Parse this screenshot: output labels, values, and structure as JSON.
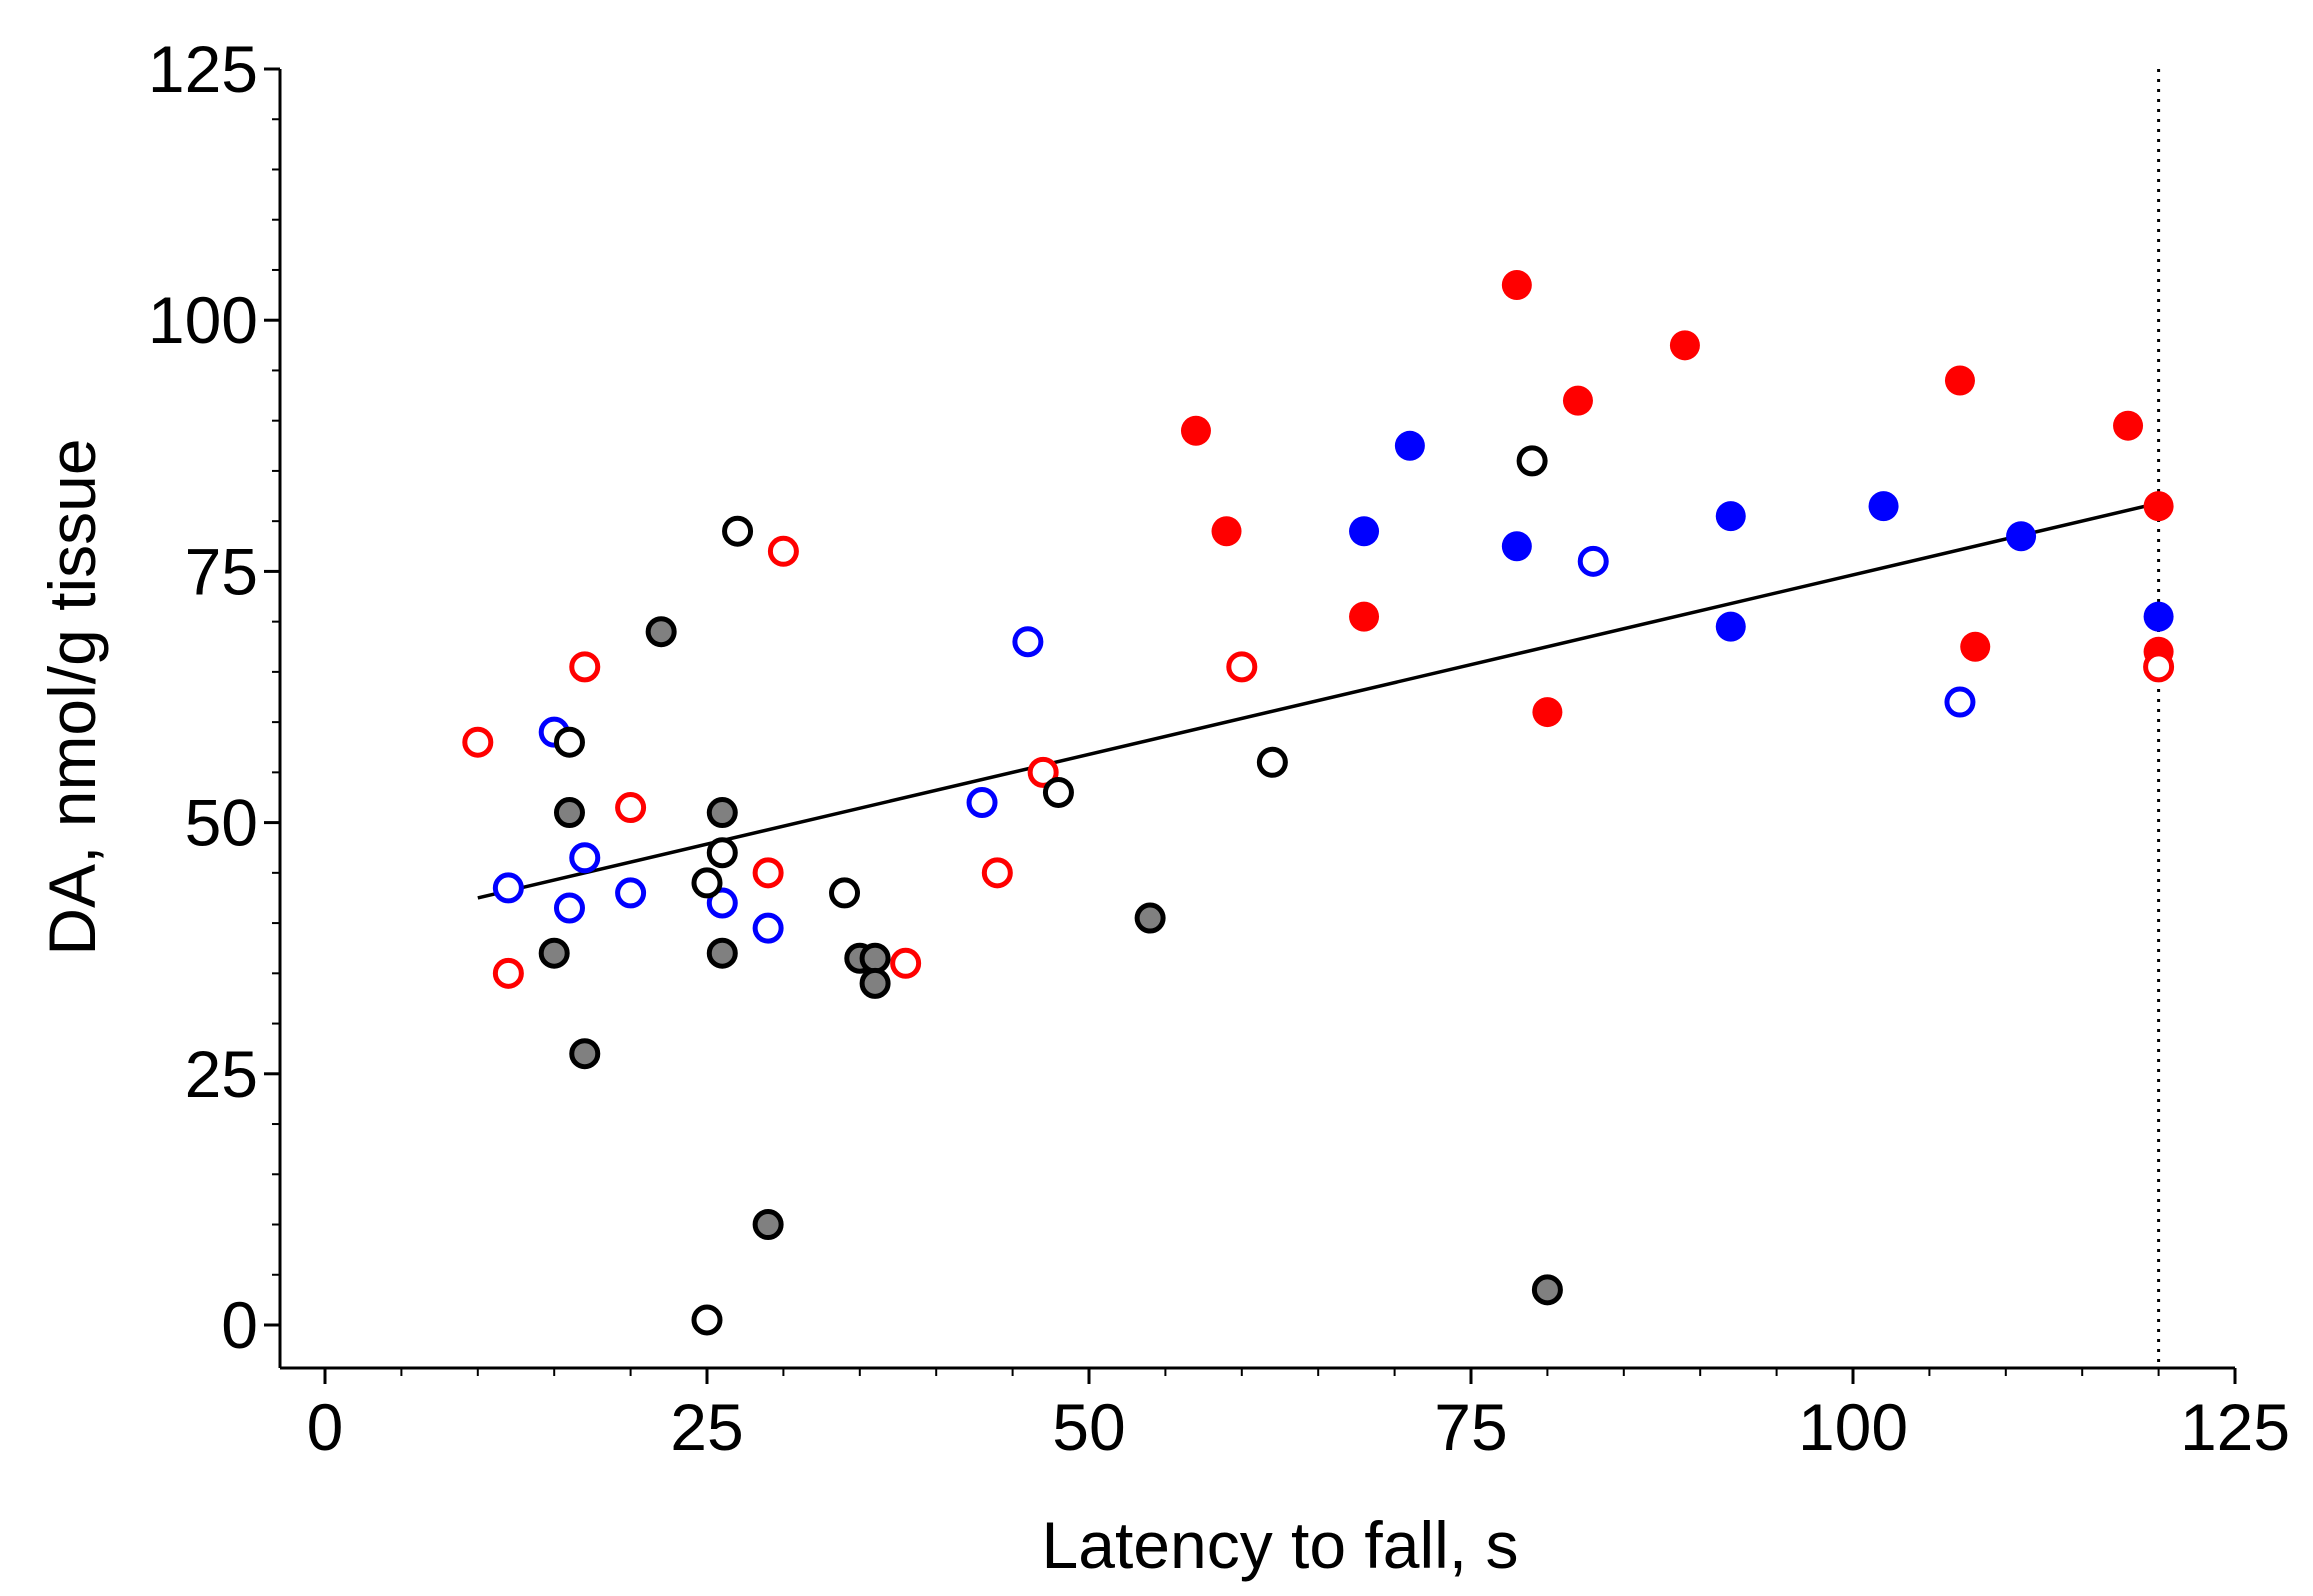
{
  "chart_data": {
    "type": "scatter",
    "title": "",
    "xlabel": "Latency to fall, s",
    "ylabel": "DA, nmol/g tissue",
    "xlim": [
      0,
      125
    ],
    "ylim": [
      0,
      125
    ],
    "xticks": [
      0,
      25,
      50,
      75,
      100,
      125
    ],
    "yticks": [
      0,
      25,
      50,
      75,
      100,
      125
    ],
    "xtick_labels": [
      "0",
      "25",
      "50",
      "75",
      "100",
      "125"
    ],
    "ytick_labels": [
      "0",
      "25",
      "50",
      "75",
      "100",
      "125"
    ],
    "grid": false,
    "legend": "none",
    "cutoff_line": {
      "x": 120,
      "style": "dotted",
      "color": "#000000"
    },
    "trend_line": {
      "x": [
        10,
        120
      ],
      "y": [
        42.5,
        81.8
      ],
      "color": "#000000"
    },
    "series": [
      {
        "name": "red filled",
        "marker": "filled",
        "color": "#ff0000",
        "points": [
          [
            57,
            89
          ],
          [
            59,
            79
          ],
          [
            68,
            70.5
          ],
          [
            78,
            103.5
          ],
          [
            80,
            61
          ],
          [
            82,
            92
          ],
          [
            89,
            97.5
          ],
          [
            107,
            94
          ],
          [
            108,
            67.5
          ],
          [
            118,
            89.5
          ],
          [
            120,
            81.5
          ],
          [
            120,
            67
          ]
        ]
      },
      {
        "name": "red open",
        "marker": "open",
        "color": "#ff0000",
        "points": [
          [
            10,
            58
          ],
          [
            12,
            35
          ],
          [
            17,
            65.5
          ],
          [
            20,
            51.5
          ],
          [
            29,
            45
          ],
          [
            30,
            77
          ],
          [
            38,
            36
          ],
          [
            44,
            45
          ],
          [
            47,
            55
          ],
          [
            60,
            65.5
          ],
          [
            120,
            65.5
          ]
        ]
      },
      {
        "name": "blue filled",
        "marker": "filled",
        "color": "#0000ff",
        "points": [
          [
            68,
            79
          ],
          [
            71,
            87.5
          ],
          [
            78,
            77.5
          ],
          [
            92,
            80.5
          ],
          [
            92,
            69.5
          ],
          [
            102,
            81.5
          ],
          [
            111,
            78.5
          ],
          [
            120,
            70.5
          ]
        ]
      },
      {
        "name": "blue open",
        "marker": "open",
        "color": "#0000ff",
        "points": [
          [
            12,
            43.5
          ],
          [
            15,
            59
          ],
          [
            16,
            41.5
          ],
          [
            17,
            46.5
          ],
          [
            20,
            43
          ],
          [
            26,
            42
          ],
          [
            29,
            39.5
          ],
          [
            43,
            52
          ],
          [
            46,
            68
          ],
          [
            83,
            76
          ],
          [
            107,
            62
          ]
        ]
      },
      {
        "name": "gray filled",
        "marker": "filled",
        "color": "#808080",
        "points": [
          [
            15,
            37
          ],
          [
            16,
            51
          ],
          [
            17,
            27
          ],
          [
            22,
            69
          ],
          [
            26,
            51
          ],
          [
            26,
            37
          ],
          [
            29,
            10
          ],
          [
            35,
            36.5
          ],
          [
            36,
            36.5
          ],
          [
            36,
            34
          ],
          [
            54,
            40.5
          ],
          [
            80,
            3.5
          ]
        ]
      },
      {
        "name": "black open",
        "marker": "open",
        "color": "#000000",
        "points": [
          [
            16,
            58
          ],
          [
            25,
            44
          ],
          [
            25,
            0.5
          ],
          [
            26,
            47
          ],
          [
            27,
            79
          ],
          [
            34,
            43
          ],
          [
            48,
            53
          ],
          [
            62,
            56
          ],
          [
            79,
            86
          ]
        ]
      }
    ]
  }
}
